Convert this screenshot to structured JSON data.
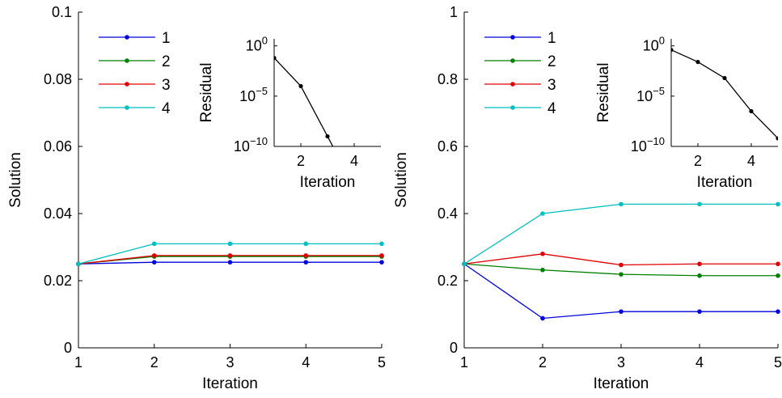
{
  "chart_data": [
    {
      "type": "line",
      "xlabel": "Iteration",
      "ylabel": "Solution",
      "xlim": [
        1,
        5
      ],
      "ylim": [
        0,
        0.1
      ],
      "xticks": [
        "1",
        "2",
        "3",
        "4",
        "5"
      ],
      "yticks": [
        "0",
        "0.02",
        "0.04",
        "0.06",
        "0.08",
        "0.1"
      ],
      "legend_position": "top-left",
      "x": [
        1,
        2,
        3,
        4,
        5
      ],
      "series": [
        {
          "name": "1",
          "color": "#0000dd",
          "values": [
            0.025,
            0.0255,
            0.0255,
            0.0255,
            0.0255
          ]
        },
        {
          "name": "2",
          "color": "#008000",
          "values": [
            0.025,
            0.0272,
            0.0272,
            0.0272,
            0.0272
          ]
        },
        {
          "name": "3",
          "color": "#e00000",
          "values": [
            0.025,
            0.0275,
            0.0275,
            0.0275,
            0.0275
          ]
        },
        {
          "name": "4",
          "color": "#00bfbf",
          "values": [
            0.025,
            0.031,
            0.031,
            0.031,
            0.031
          ]
        }
      ],
      "inset": {
        "type": "line",
        "scale": "log",
        "xlabel": "Iteration",
        "ylabel": "Residual",
        "xlim": [
          1,
          5
        ],
        "ylim_exp": [
          -10,
          0.7
        ],
        "xticks": [
          "2",
          "4"
        ],
        "yticks": [
          {
            "base": "10",
            "exp": "0"
          },
          {
            "base": "10",
            "exp": "−5"
          },
          {
            "base": "10",
            "exp": "−10"
          }
        ],
        "color": "#000000",
        "x": [
          1,
          2,
          3,
          4
        ],
        "log10_values": [
          -1.2,
          -4.0,
          -9.0,
          -14.0
        ]
      }
    },
    {
      "type": "line",
      "xlabel": "Iteration",
      "ylabel": "Solution",
      "xlim": [
        1,
        5
      ],
      "ylim": [
        0,
        1
      ],
      "xticks": [
        "1",
        "2",
        "3",
        "4",
        "5"
      ],
      "yticks": [
        "0",
        "0.2",
        "0.4",
        "0.6",
        "0.8",
        "1"
      ],
      "legend_position": "top-left",
      "x": [
        1,
        2,
        3,
        4,
        5
      ],
      "series": [
        {
          "name": "1",
          "color": "#0000dd",
          "values": [
            0.25,
            0.088,
            0.108,
            0.108,
            0.108
          ]
        },
        {
          "name": "2",
          "color": "#008000",
          "values": [
            0.25,
            0.232,
            0.219,
            0.215,
            0.215
          ]
        },
        {
          "name": "3",
          "color": "#e00000",
          "values": [
            0.25,
            0.28,
            0.247,
            0.25,
            0.25
          ]
        },
        {
          "name": "4",
          "color": "#00bfbf",
          "values": [
            0.25,
            0.4,
            0.428,
            0.428,
            0.428
          ]
        }
      ],
      "inset": {
        "type": "line",
        "scale": "log",
        "xlabel": "Iteration",
        "ylabel": "Residual",
        "xlim": [
          1,
          5
        ],
        "ylim_exp": [
          -10,
          0.7
        ],
        "xticks": [
          "2",
          "4"
        ],
        "yticks": [
          {
            "base": "10",
            "exp": "0"
          },
          {
            "base": "10",
            "exp": "−5"
          },
          {
            "base": "10",
            "exp": "−10"
          }
        ],
        "color": "#000000",
        "x": [
          1,
          2,
          3,
          4,
          5
        ],
        "log10_values": [
          -0.4,
          -1.6,
          -3.2,
          -6.5,
          -9.2
        ]
      }
    }
  ]
}
